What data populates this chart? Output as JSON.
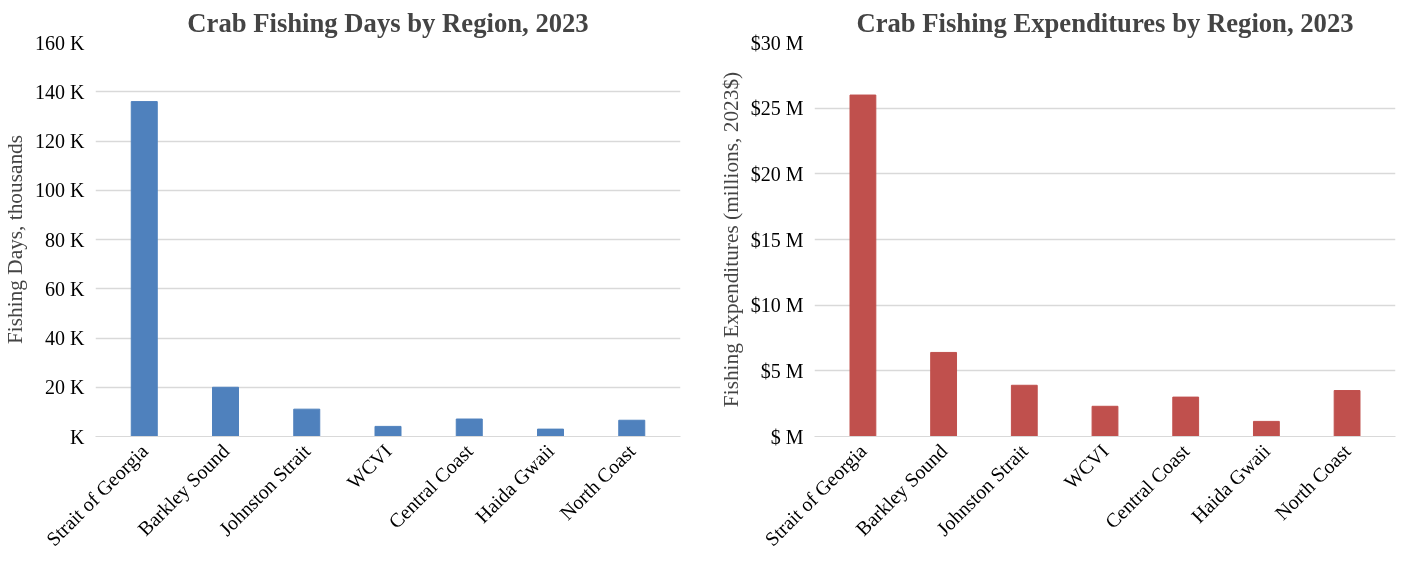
{
  "chart_data": [
    {
      "type": "bar",
      "title": "Crab Fishing Days by Region, 2023",
      "ylabel": "Fishing Days, thousands",
      "categories": [
        "Strait of Georgia",
        "Barkley Sound",
        "Johnston Strait",
        "WCVI",
        "Central Coast",
        "Haida Gwaii",
        "North Coast"
      ],
      "values": [
        136,
        20,
        11.1,
        4.1,
        7.1,
        3.0,
        6.6
      ],
      "color": "#4f81bd",
      "ylim": [
        0,
        160
      ],
      "yticks": [
        {
          "value": 0,
          "label": "K"
        },
        {
          "value": 20,
          "label": "20 K"
        },
        {
          "value": 40,
          "label": "40 K"
        },
        {
          "value": 60,
          "label": "60 K"
        },
        {
          "value": 80,
          "label": "80 K"
        },
        {
          "value": 100,
          "label": "100 K"
        },
        {
          "value": 120,
          "label": "120 K"
        },
        {
          "value": 140,
          "label": "140 K"
        },
        {
          "value": 160,
          "label": "160 K"
        }
      ],
      "grid": "y"
    },
    {
      "type": "bar",
      "title": "Crab Fishing Expenditures by Region, 2023",
      "ylabel": "Fishing Expenditures (millions, 2023$)",
      "categories": [
        "Strait of Georgia",
        "Barkley Sound",
        "Johnston Strait",
        "WCVI",
        "Central Coast",
        "Haida Gwaii",
        "North Coast"
      ],
      "values": [
        26,
        6.4,
        3.9,
        2.3,
        3.0,
        1.15,
        3.5
      ],
      "color": "#c0504d",
      "ylim": [
        0,
        30
      ],
      "yticks": [
        {
          "value": 0,
          "label": "$ M"
        },
        {
          "value": 5,
          "label": "$5 M"
        },
        {
          "value": 10,
          "label": "$10 M"
        },
        {
          "value": 15,
          "label": "$15 M"
        },
        {
          "value": 20,
          "label": "$20 M"
        },
        {
          "value": 25,
          "label": "$25 M"
        },
        {
          "value": 30,
          "label": "$30 M"
        }
      ],
      "grid": "y"
    }
  ]
}
